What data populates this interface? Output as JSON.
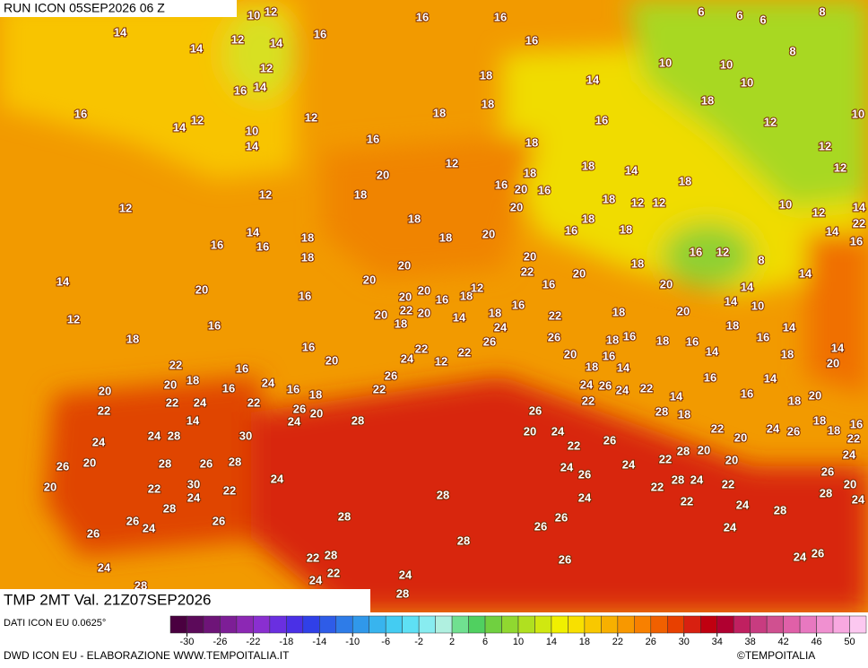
{
  "header": {
    "run": "RUN ICON 05SEP2026 06 Z",
    "valid": "TMP 2MT Val. 21Z07SEP2026"
  },
  "map_labels": [
    10,
    12,
    16,
    16,
    6,
    6,
    6,
    8,
    14,
    12,
    16,
    14,
    14,
    16,
    8,
    12,
    14,
    16,
    18,
    14,
    12,
    10,
    10,
    10,
    16,
    14,
    12,
    18,
    18,
    18,
    10,
    10,
    14,
    16,
    18,
    16,
    12,
    12,
    12,
    20,
    18,
    18,
    14,
    12,
    12,
    18,
    16,
    20,
    16,
    18,
    12,
    18,
    20,
    18,
    12,
    12,
    10,
    12,
    14,
    14,
    16,
    16,
    18,
    18,
    20,
    18,
    16,
    18,
    14,
    22,
    16,
    18,
    20,
    20,
    18,
    16,
    12,
    8,
    14,
    20,
    20,
    22,
    16,
    20,
    20,
    14,
    16,
    20,
    20,
    16,
    18,
    12,
    14,
    14,
    10,
    12,
    16,
    20,
    22,
    20,
    14,
    18,
    16,
    22,
    18,
    20,
    18,
    14,
    18,
    16,
    18,
    22,
    12,
    22,
    26,
    24,
    26,
    18,
    16,
    18,
    16,
    14,
    16,
    14,
    22,
    16,
    20,
    24,
    20,
    18,
    16,
    14,
    18,
    20,
    20,
    20,
    18,
    16,
    24,
    16,
    18,
    26,
    22,
    24,
    26,
    24,
    22,
    14,
    16,
    16,
    14,
    18,
    20,
    22,
    22,
    24,
    22,
    26,
    20,
    24,
    22,
    28,
    18,
    18,
    18,
    16,
    14,
    24,
    28,
    30,
    28,
    26,
    20,
    24,
    22,
    20,
    24,
    26,
    24,
    20,
    26,
    28,
    26,
    28,
    22,
    26,
    22,
    28,
    20,
    20,
    24,
    22,
    20,
    22,
    30,
    24,
    22,
    24,
    28,
    24,
    26,
    24,
    28,
    24,
    22,
    22,
    26,
    20,
    24,
    28,
    26,
    28,
    24,
    26,
    28,
    24,
    26,
    22,
    24,
    28,
    24,
    26,
    28,
    26,
    24,
    26,
    24,
    22,
    28,
    22,
    24,
    26,
    24,
    28,
    28
  ],
  "colorbar": {
    "source": "DATI ICON EU 0.0625°",
    "ticks": [
      -30,
      -26,
      -22,
      -18,
      -14,
      -10,
      -6,
      -2,
      2,
      6,
      10,
      14,
      18,
      22,
      26,
      30,
      34,
      38,
      42,
      46,
      50
    ],
    "colors": [
      "#4a0040",
      "#5c0a5a",
      "#6e1478",
      "#7d1e96",
      "#8c28b4",
      "#8a2fd0",
      "#6a2fe0",
      "#4a30e6",
      "#3040e8",
      "#2e5ce8",
      "#2e7ce8",
      "#3098ea",
      "#38b4ee",
      "#44ccf2",
      "#5ee0f4",
      "#88ecf0",
      "#b0f0e0",
      "#70e090",
      "#50d060",
      "#70d040",
      "#90d830",
      "#b0e020",
      "#d0e810",
      "#f0f000",
      "#f8e000",
      "#f8c800",
      "#f8b000",
      "#f89800",
      "#f88000",
      "#f06000",
      "#e84000",
      "#d82010",
      "#c00010",
      "#b00030",
      "#c02060",
      "#c83c80",
      "#d05090",
      "#e060a8",
      "#e878c0",
      "#f090d0",
      "#f8a8e0",
      "#fcc8f0"
    ]
  },
  "footer": {
    "credit": "DWD ICON EU - ELABORAZIONE WWW.TEMPOITALIA.IT",
    "brand": "©TEMPOITALIA"
  }
}
